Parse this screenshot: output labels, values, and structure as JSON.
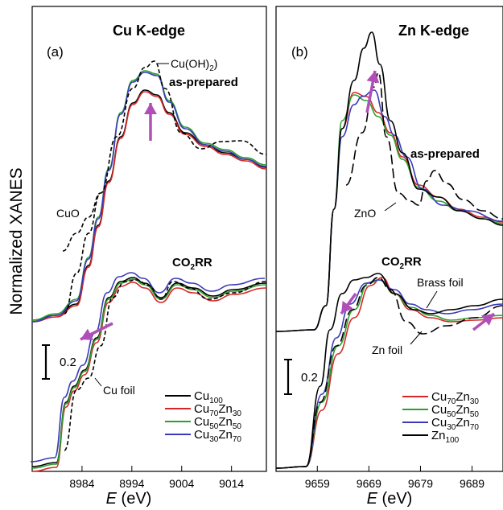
{
  "figure": {
    "ylabel": "Normalized XANES",
    "xlabel_italic": "E",
    "xlabel_rest": " (eV)"
  },
  "chart_data": [
    {
      "type": "line",
      "panel": "(a)",
      "title": "Cu K-edge",
      "xlim": [
        8974,
        9021
      ],
      "ylim": [
        0,
        1
      ],
      "xticks": [
        8984,
        8994,
        9004,
        9014
      ],
      "scale_bar": "0.2",
      "annotations": {
        "cuoh2": "Cu(OH)",
        "cuoh2_sub": "2",
        "as_prepared": "as-prepared",
        "cuo": "CuO",
        "co2rr": "CO",
        "co2rr_sub": "2",
        "co2rr_tail": "RR",
        "foil": "Cu foil"
      },
      "legend": [
        {
          "base": "Cu",
          "parts": [
            [
              "Cu",
              "100"
            ]
          ],
          "color": "#000000"
        },
        {
          "parts": [
            [
              "Cu",
              "70"
            ],
            [
              "Zn",
              "30"
            ]
          ],
          "color": "#d62728"
        },
        {
          "parts": [
            [
              "Cu",
              "50"
            ],
            [
              "Zn",
              "50"
            ]
          ],
          "color": "#2ca02c"
        },
        {
          "parts": [
            [
              "Cu",
              "30"
            ],
            [
              "Zn",
              "70"
            ]
          ],
          "color": "#3a3ab8"
        }
      ],
      "arrow_color": "#b04fb8"
    },
    {
      "type": "line",
      "panel": "(b)",
      "title": "Zn K-edge",
      "xlim": [
        9651,
        9695
      ],
      "ylim": [
        0,
        1
      ],
      "xticks": [
        9659,
        9669,
        9679,
        9689
      ],
      "scale_bar": "0.2",
      "annotations": {
        "as_prepared": "as-prepared",
        "zno": "ZnO",
        "co2rr": "CO",
        "co2rr_sub": "2",
        "co2rr_tail": "RR",
        "brass": "Brass foil",
        "znfoil": "Zn foil"
      },
      "legend": [
        {
          "parts": [
            [
              "Cu",
              "70"
            ],
            [
              "Zn",
              "30"
            ]
          ],
          "color": "#d62728"
        },
        {
          "parts": [
            [
              "Cu",
              "50"
            ],
            [
              "Zn",
              "50"
            ]
          ],
          "color": "#2ca02c"
        },
        {
          "parts": [
            [
              "Cu",
              "30"
            ],
            [
              "Zn",
              "70"
            ]
          ],
          "color": "#3a3ab8"
        },
        {
          "parts": [
            [
              "Zn",
              "100"
            ]
          ],
          "color": "#000000"
        }
      ],
      "arrow_color": "#b04fb8"
    }
  ]
}
